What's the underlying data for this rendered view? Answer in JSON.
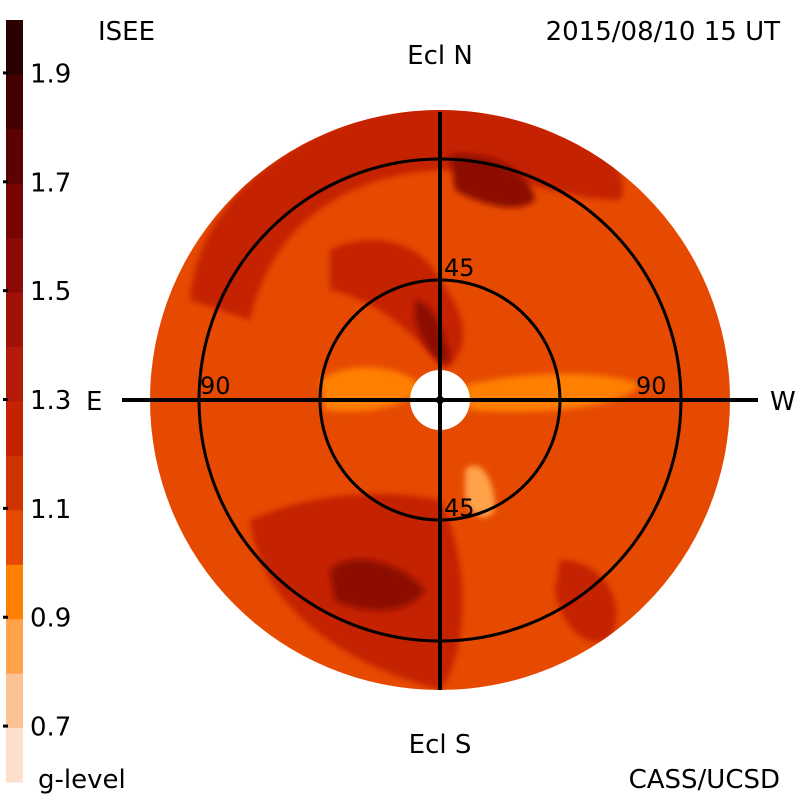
{
  "header": {
    "left": "ISEE",
    "right": "2015/08/10 15 UT"
  },
  "footer": {
    "left": "g-level",
    "right": "CASS/UCSD"
  },
  "axes": {
    "top": "Ecl N",
    "bottom": "Ecl S",
    "left": "E",
    "right": "W"
  },
  "chart_data": {
    "type": "heatmap",
    "projection": "polar sky map (fisheye), sun at center",
    "colorbar": {
      "label": "g-level",
      "ticks": [
        "1.9",
        "1.7",
        "1.5",
        "1.3",
        "1.1",
        "0.9",
        "0.7"
      ],
      "range": [
        0.6,
        2.0
      ],
      "levels": [
        {
          "from": 0.6,
          "to": 0.7,
          "color": "#fde0cc"
        },
        {
          "from": 0.7,
          "to": 0.8,
          "color": "#fbc393"
        },
        {
          "from": 0.8,
          "to": 0.9,
          "color": "#ffa24a"
        },
        {
          "from": 0.9,
          "to": 1.0,
          "color": "#ff7f00"
        },
        {
          "from": 1.0,
          "to": 1.1,
          "color": "#e64a00"
        },
        {
          "from": 1.1,
          "to": 1.2,
          "color": "#d03300"
        },
        {
          "from": 1.2,
          "to": 1.3,
          "color": "#c42200"
        },
        {
          "from": 1.3,
          "to": 1.4,
          "color": "#b31a0a"
        },
        {
          "from": 1.4,
          "to": 1.5,
          "color": "#a01208"
        },
        {
          "from": 1.5,
          "to": 1.6,
          "color": "#8c0a06"
        },
        {
          "from": 1.6,
          "to": 1.7,
          "color": "#760504"
        },
        {
          "from": 1.7,
          "to": 1.8,
          "color": "#5c0202"
        },
        {
          "from": 1.8,
          "to": 1.9,
          "color": "#420100"
        },
        {
          "from": 1.9,
          "to": 2.0,
          "color": "#2a0000"
        }
      ]
    },
    "rings": [
      {
        "elongation_deg": 45,
        "label": "45"
      },
      {
        "elongation_deg": 90,
        "label": "90"
      }
    ],
    "outer_elongation_deg": 120,
    "background_g_level": 1.05,
    "features": [
      {
        "name": "north arc",
        "g": 1.25
      },
      {
        "name": "north enhancement",
        "g": 1.5
      },
      {
        "name": "inner north streak",
        "g": 1.55
      },
      {
        "name": "south-west arc",
        "g": 1.25
      },
      {
        "name": "south enhancement",
        "g": 1.55
      },
      {
        "name": "east band",
        "g": 0.9
      },
      {
        "name": "west band",
        "g": 0.9
      },
      {
        "name": "south-east patch",
        "g": 0.88
      }
    ]
  }
}
